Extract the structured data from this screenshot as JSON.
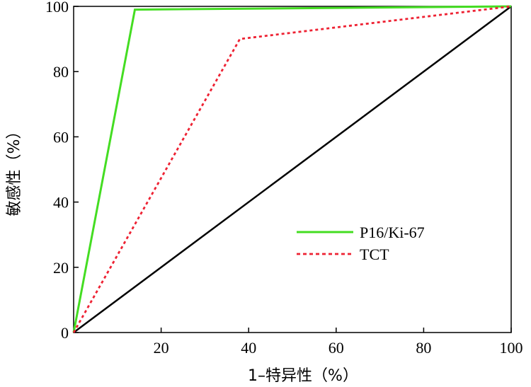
{
  "chart_data": {
    "type": "line",
    "xlabel": "1–特异性（%）",
    "ylabel": "敏感性（%）",
    "xlim": [
      0,
      100
    ],
    "ylim": [
      0,
      100
    ],
    "xticks": [
      20,
      40,
      60,
      80,
      100
    ],
    "yticks": [
      0,
      20,
      40,
      60,
      80,
      100
    ],
    "grid": false,
    "legend_position": "lower-right",
    "series": [
      {
        "name": "P16/Ki-67",
        "color": "#44dd22",
        "style": "solid",
        "x": [
          0,
          14,
          100
        ],
        "y": [
          0,
          99,
          100
        ]
      },
      {
        "name": "TCT",
        "color": "#ee2233",
        "style": "dashed",
        "x": [
          0,
          38,
          100
        ],
        "y": [
          0,
          90,
          100
        ]
      },
      {
        "name": "",
        "color": "#000000",
        "style": "solid",
        "reference": true,
        "x": [
          0,
          100
        ],
        "y": [
          0,
          100
        ]
      }
    ]
  }
}
